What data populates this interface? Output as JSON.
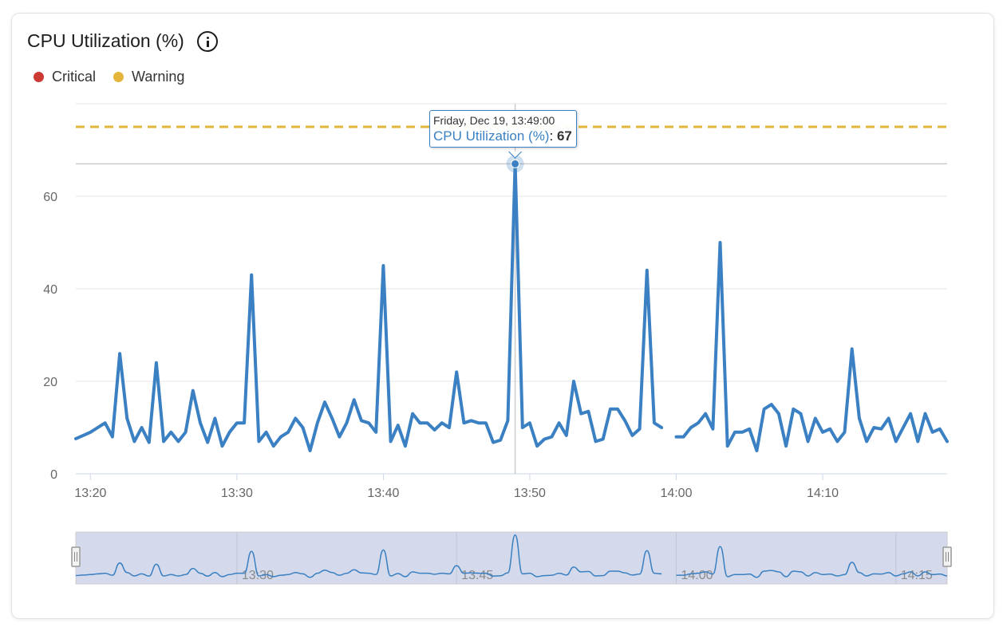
{
  "card": {
    "title": "CPU Utilization (%)",
    "info_icon": "info-circle-icon"
  },
  "legend": [
    {
      "label": "Critical",
      "color": "#cc3a33"
    },
    {
      "label": "Warning",
      "color": "#e3b53b"
    }
  ],
  "tooltip": {
    "date": "Friday, Dec 19, 13:49:00",
    "series": "CPU Utilization (%)",
    "separator": ": ",
    "value": "67"
  },
  "chart_data": {
    "type": "line",
    "title": "CPU Utilization (%)",
    "ylim": [
      0,
      80
    ],
    "yticks": [
      0,
      20,
      40,
      60
    ],
    "xticks": [
      "13:20",
      "13:30",
      "13:40",
      "13:50",
      "14:00",
      "14:10"
    ],
    "xlim": [
      "13:19:00",
      "14:18:30"
    ],
    "grid": true,
    "line_color": "#3a80c2",
    "thresholds": [
      {
        "name": "Warning",
        "value": 75,
        "color": "#e3b53b",
        "style": "dashed"
      }
    ],
    "hover_point": {
      "x": "13:49:00",
      "y": 67
    },
    "navigator": {
      "ticks": [
        "13:30",
        "13:45",
        "14:00",
        "14:15"
      ],
      "selection": [
        "13:19:00",
        "14:18:30"
      ]
    },
    "series": [
      {
        "name": "CPU Utilization (%)",
        "points": [
          [
            "13:19:00",
            7.6
          ],
          [
            "13:19:30",
            8.3
          ],
          [
            "13:20:00",
            9
          ],
          [
            "13:20:30",
            10
          ],
          [
            "13:21:00",
            11
          ],
          [
            "13:21:30",
            8
          ],
          [
            "13:22:00",
            26
          ],
          [
            "13:22:30",
            12
          ],
          [
            "13:23:00",
            7
          ],
          [
            "13:23:30",
            10
          ],
          [
            "13:24:00",
            6.8
          ],
          [
            "13:24:30",
            24
          ],
          [
            "13:25:00",
            7
          ],
          [
            "13:25:30",
            9
          ],
          [
            "13:26:00",
            7
          ],
          [
            "13:26:30",
            9
          ],
          [
            "13:27:00",
            18
          ],
          [
            "13:27:30",
            11
          ],
          [
            "13:28:00",
            6.8
          ],
          [
            "13:28:30",
            12
          ],
          [
            "13:29:00",
            6
          ],
          [
            "13:29:30",
            9
          ],
          [
            "13:30:00",
            11
          ],
          [
            "13:30:30",
            11
          ],
          [
            "13:31:00",
            43
          ],
          [
            "13:31:30",
            7
          ],
          [
            "13:32:00",
            9
          ],
          [
            "13:32:30",
            6
          ],
          [
            "13:33:00",
            8
          ],
          [
            "13:33:30",
            9
          ],
          [
            "13:34:00",
            12
          ],
          [
            "13:34:30",
            10
          ],
          [
            "13:35:00",
            5
          ],
          [
            "13:35:30",
            11
          ],
          [
            "13:36:00",
            15.5
          ],
          [
            "13:36:30",
            12
          ],
          [
            "13:37:00",
            8
          ],
          [
            "13:37:30",
            11
          ],
          [
            "13:38:00",
            16
          ],
          [
            "13:38:30",
            11.5
          ],
          [
            "13:39:00",
            11
          ],
          [
            "13:39:30",
            9
          ],
          [
            "13:40:00",
            45
          ],
          [
            "13:40:30",
            7
          ],
          [
            "13:41:00",
            10.5
          ],
          [
            "13:41:30",
            6
          ],
          [
            "13:42:00",
            13
          ],
          [
            "13:42:30",
            11
          ],
          [
            "13:43:00",
            11
          ],
          [
            "13:43:30",
            9.5
          ],
          [
            "13:44:00",
            11
          ],
          [
            "13:44:30",
            10
          ],
          [
            "13:45:00",
            22
          ],
          [
            "13:45:30",
            11
          ],
          [
            "13:46:00",
            11.5
          ],
          [
            "13:46:30",
            11
          ],
          [
            "13:47:00",
            11
          ],
          [
            "13:47:30",
            6.8
          ],
          [
            "13:48:00",
            7.3
          ],
          [
            "13:48:30",
            11.5
          ],
          [
            "13:49:00",
            67
          ],
          [
            "13:49:30",
            10
          ],
          [
            "13:50:00",
            11
          ],
          [
            "13:50:30",
            6
          ],
          [
            "13:51:00",
            7.5
          ],
          [
            "13:51:30",
            8
          ],
          [
            "13:52:00",
            11
          ],
          [
            "13:52:30",
            8.3
          ],
          [
            "13:53:00",
            20
          ],
          [
            "13:53:30",
            13
          ],
          [
            "13:54:00",
            13.5
          ],
          [
            "13:54:30",
            7
          ],
          [
            "13:55:00",
            7.5
          ],
          [
            "13:55:30",
            14
          ],
          [
            "13:56:00",
            14
          ],
          [
            "13:56:30",
            11.5
          ],
          [
            "13:57:00",
            8.3
          ],
          [
            "13:57:30",
            9.7
          ],
          [
            "13:58:00",
            44
          ],
          [
            "13:58:30",
            11
          ],
          [
            "13:59:00",
            10
          ],
          [
            "13:59:30",
            null
          ],
          [
            "14:00:00",
            8
          ],
          [
            "14:00:30",
            8
          ],
          [
            "14:01:00",
            10
          ],
          [
            "14:01:30",
            11
          ],
          [
            "14:02:00",
            13
          ],
          [
            "14:02:30",
            9.7
          ],
          [
            "14:03:00",
            50
          ],
          [
            "14:03:30",
            6
          ],
          [
            "14:04:00",
            9
          ],
          [
            "14:04:30",
            9
          ],
          [
            "14:05:00",
            9.7
          ],
          [
            "14:05:30",
            5
          ],
          [
            "14:06:00",
            14
          ],
          [
            "14:06:30",
            15
          ],
          [
            "14:07:00",
            13
          ],
          [
            "14:07:30",
            6
          ],
          [
            "14:08:00",
            14
          ],
          [
            "14:08:30",
            13
          ],
          [
            "14:09:00",
            7
          ],
          [
            "14:09:30",
            12
          ],
          [
            "14:10:00",
            9
          ],
          [
            "14:10:30",
            9.7
          ],
          [
            "14:11:00",
            7
          ],
          [
            "14:11:30",
            9
          ],
          [
            "14:12:00",
            27
          ],
          [
            "14:12:30",
            12
          ],
          [
            "14:13:00",
            7
          ],
          [
            "14:13:30",
            10
          ],
          [
            "14:14:00",
            9.7
          ],
          [
            "14:14:30",
            12
          ],
          [
            "14:15:00",
            7
          ],
          [
            "14:15:30",
            10
          ],
          [
            "14:16:00",
            13
          ],
          [
            "14:16:30",
            7
          ],
          [
            "14:17:00",
            13
          ],
          [
            "14:17:30",
            9
          ],
          [
            "14:18:00",
            9.7
          ],
          [
            "14:18:30",
            7
          ]
        ]
      }
    ]
  }
}
